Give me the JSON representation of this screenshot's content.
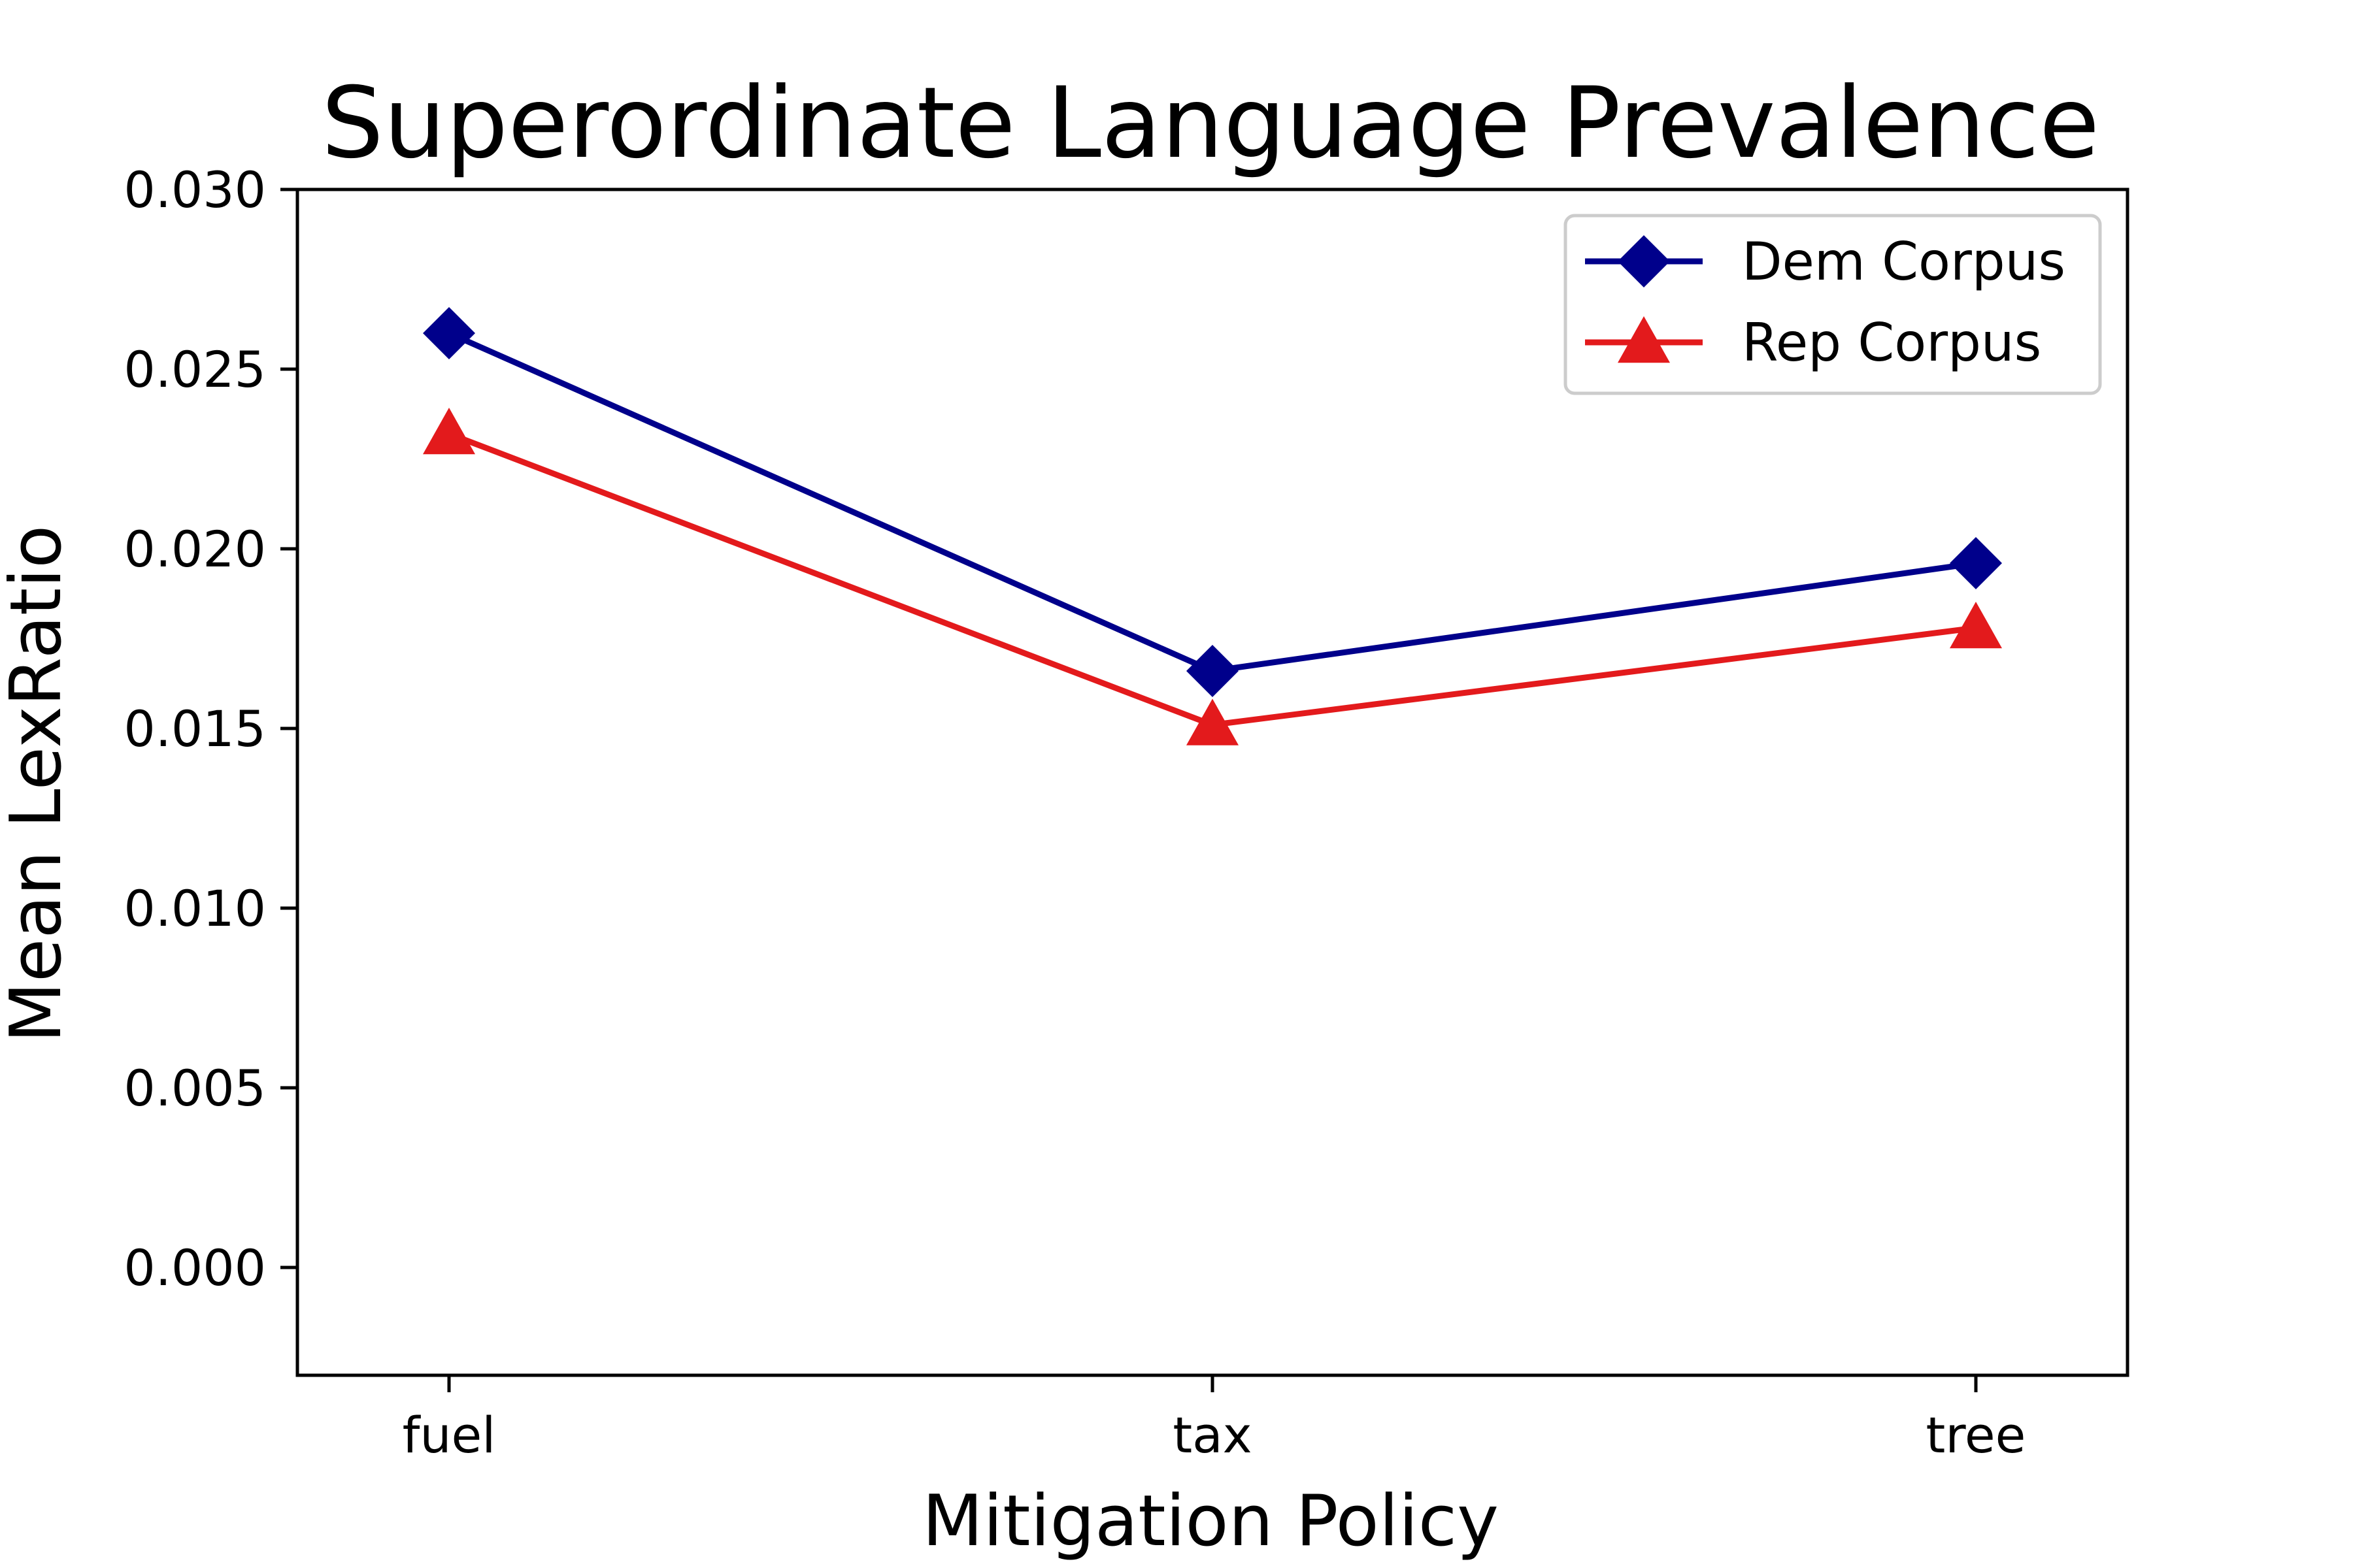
{
  "chart_data": {
    "type": "line",
    "title": "Superordinate Language Prevalence",
    "xlabel": "Mitigation Policy",
    "ylabel": "Mean LexRatio",
    "categories": [
      "fuel",
      "tax",
      "tree"
    ],
    "ylim": [
      -0.003,
      0.03
    ],
    "yticks": [
      "0.000",
      "0.005",
      "0.010",
      "0.015",
      "0.020",
      "0.025",
      "0.030"
    ],
    "grid": false,
    "legend_position": "top-right",
    "series": [
      {
        "name": "Dem Corpus",
        "values": [
          0.026,
          0.0166,
          0.0196
        ],
        "color": "#00008b",
        "marker": "diamond"
      },
      {
        "name": "Rep Corpus",
        "values": [
          0.0232,
          0.0151,
          0.0178
        ],
        "color": "#e31a1c",
        "marker": "triangle"
      }
    ]
  }
}
